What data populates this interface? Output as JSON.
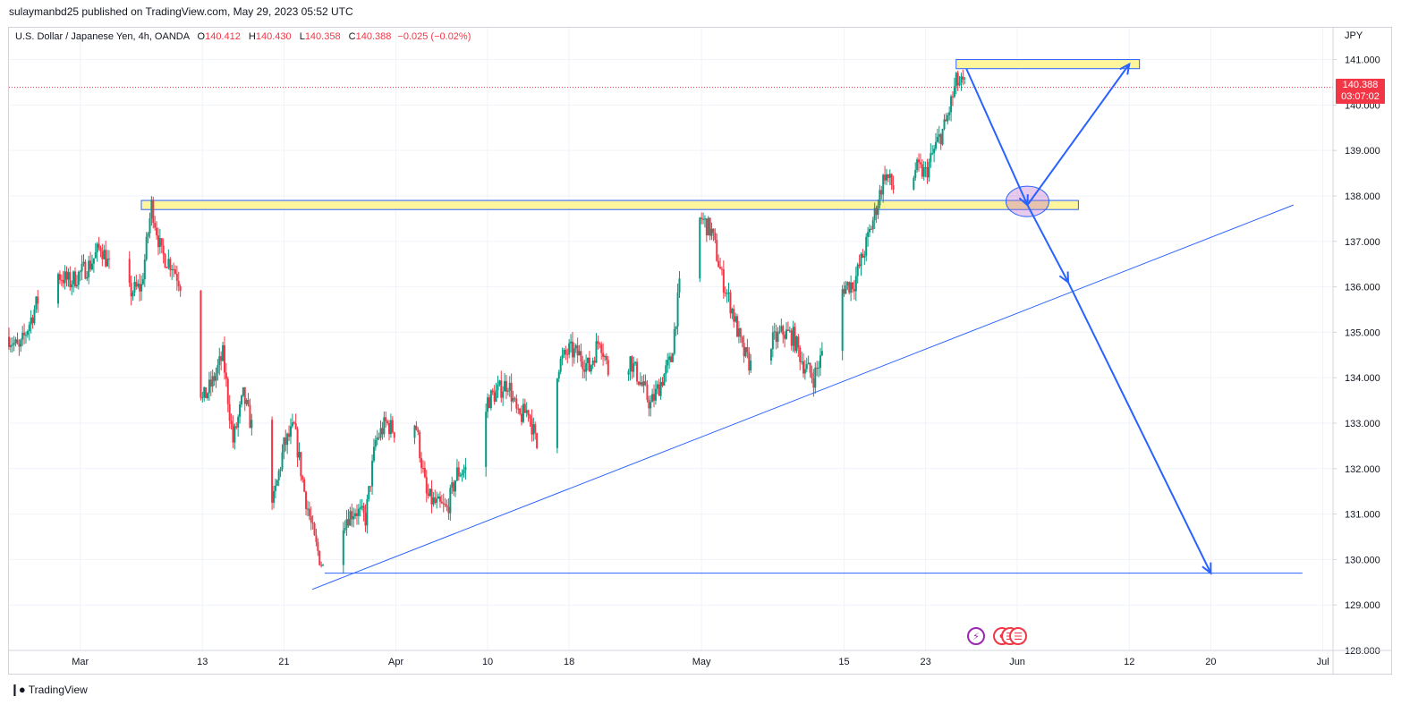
{
  "header": {
    "published_line": "sulaymanbd25 published on TradingView.com, May 29, 2023 05:52 UTC"
  },
  "legend": {
    "symbol": "U.S. Dollar / Japanese Yen, 4h, OANDA",
    "o_label": "O",
    "o_value": "140.412",
    "h_label": "H",
    "h_value": "140.430",
    "l_label": "L",
    "l_value": "140.358",
    "c_label": "C",
    "c_value": "140.388",
    "change": "−0.025 (−0.02%)"
  },
  "currency": "JPY",
  "price_label": {
    "price": "140.388",
    "countdown": "03:07:02"
  },
  "brand": {
    "name": "TradingView"
  },
  "colors": {
    "up": "#089981",
    "down": "#f23645",
    "drawing": "#2962ff",
    "zone_fill": "#fff59d",
    "zone_border": "#2962ff"
  },
  "chart_data": {
    "type": "candlestick",
    "title": "U.S. Dollar / Japanese Yen, 4h, OANDA",
    "ylim": [
      128.0,
      141.7
    ],
    "y_ticks": [
      "141.000",
      "140.000",
      "139.000",
      "138.000",
      "137.000",
      "136.000",
      "135.000",
      "134.000",
      "133.000",
      "132.000",
      "131.000",
      "130.000",
      "129.000",
      "128.000"
    ],
    "x_ticks": [
      "Mar",
      "13",
      "21",
      "Apr",
      "10",
      "18",
      "May",
      "15",
      "23",
      "Jun",
      "12",
      "20",
      "Jul"
    ],
    "x_tick_dates": [
      "2023-03-01",
      "2023-03-13",
      "2023-03-21",
      "2023-04-01",
      "2023-04-10",
      "2023-04-18",
      "2023-05-01",
      "2023-05-15",
      "2023-05-23",
      "2023-06-01",
      "2023-06-12",
      "2023-06-20",
      "2023-07-01"
    ],
    "x_range": [
      "2023-02-22",
      "2023-07-02"
    ],
    "grid": true,
    "price_path": [
      [
        "2023-02-22",
        134.9
      ],
      [
        "2023-02-23",
        134.6
      ],
      [
        "2023-02-24",
        135.2
      ],
      [
        "2023-02-26",
        136.4
      ],
      [
        "2023-02-28",
        136.1
      ],
      [
        "2023-03-02",
        136.5
      ],
      [
        "2023-03-03",
        136.9
      ],
      [
        "2023-03-05",
        135.8
      ],
      [
        "2023-03-07",
        136.0
      ],
      [
        "2023-03-08",
        137.8
      ],
      [
        "2023-03-09",
        136.7
      ],
      [
        "2023-03-10",
        136.5
      ],
      [
        "2023-03-11",
        136.0
      ],
      [
        "2023-03-13",
        133.5
      ],
      [
        "2023-03-14",
        133.9
      ],
      [
        "2023-03-15",
        134.5
      ],
      [
        "2023-03-16",
        132.6
      ],
      [
        "2023-03-17",
        133.6
      ],
      [
        "2023-03-19",
        132.0
      ],
      [
        "2023-03-20",
        131.3
      ],
      [
        "2023-03-21",
        132.5
      ],
      [
        "2023-03-22",
        132.9
      ],
      [
        "2023-03-23",
        131.5
      ],
      [
        "2023-03-24",
        130.4
      ],
      [
        "2023-03-25",
        129.7
      ],
      [
        "2023-03-26",
        130.7
      ],
      [
        "2023-03-28",
        131.1
      ],
      [
        "2023-03-29",
        130.9
      ],
      [
        "2023-03-30",
        132.6
      ],
      [
        "2023-03-31",
        133.0
      ],
      [
        "2023-04-01",
        132.8
      ],
      [
        "2023-04-02",
        133.5
      ],
      [
        "2023-04-03",
        132.9
      ],
      [
        "2023-04-04",
        131.4
      ],
      [
        "2023-04-05",
        131.2
      ],
      [
        "2023-04-06",
        131.1
      ],
      [
        "2023-04-07",
        131.9
      ],
      [
        "2023-04-09",
        132.1
      ],
      [
        "2023-04-10",
        133.5
      ],
      [
        "2023-04-11",
        133.7
      ],
      [
        "2023-04-12",
        133.9
      ],
      [
        "2023-04-13",
        133.1
      ],
      [
        "2023-04-14",
        133.3
      ],
      [
        "2023-04-15",
        132.3
      ],
      [
        "2023-04-16",
        133.5
      ],
      [
        "2023-04-17",
        134.3
      ],
      [
        "2023-04-18",
        134.6
      ],
      [
        "2023-04-19",
        134.5
      ],
      [
        "2023-04-20",
        134.2
      ],
      [
        "2023-04-21",
        134.9
      ],
      [
        "2023-04-22",
        134.0
      ],
      [
        "2023-04-23",
        134.2
      ],
      [
        "2023-04-24",
        134.4
      ],
      [
        "2023-04-25",
        133.9
      ],
      [
        "2023-04-26",
        133.4
      ],
      [
        "2023-04-27",
        133.9
      ],
      [
        "2023-04-28",
        134.4
      ],
      [
        "2023-04-29",
        136.3
      ],
      [
        "2023-04-30",
        137.3
      ],
      [
        "2023-05-01",
        137.5
      ],
      [
        "2023-05-02",
        137.2
      ],
      [
        "2023-05-03",
        136.2
      ],
      [
        "2023-05-04",
        135.5
      ],
      [
        "2023-05-05",
        134.6
      ],
      [
        "2023-05-06",
        134.2
      ],
      [
        "2023-05-07",
        134.9
      ],
      [
        "2023-05-08",
        134.8
      ],
      [
        "2023-05-09",
        135.0
      ],
      [
        "2023-05-10",
        134.9
      ],
      [
        "2023-05-11",
        134.3
      ],
      [
        "2023-05-12",
        134.0
      ],
      [
        "2023-05-13",
        134.6
      ],
      [
        "2023-05-14",
        135.6
      ],
      [
        "2023-05-15",
        136.0
      ],
      [
        "2023-05-16",
        136.1
      ],
      [
        "2023-05-17",
        136.8
      ],
      [
        "2023-05-18",
        137.6
      ],
      [
        "2023-05-19",
        138.5
      ],
      [
        "2023-05-20",
        138.1
      ],
      [
        "2023-05-21",
        137.7
      ],
      [
        "2023-05-22",
        138.6
      ],
      [
        "2023-05-23",
        138.5
      ],
      [
        "2023-05-24",
        139.1
      ],
      [
        "2023-05-25",
        139.6
      ],
      [
        "2023-05-26",
        140.5
      ],
      [
        "2023-05-27",
        140.4
      ]
    ],
    "drawings": {
      "resistance_zones": [
        {
          "from": "2023-03-07",
          "to": "2023-06-07",
          "low": 137.7,
          "high": 137.9
        },
        {
          "from": "2023-05-26",
          "to": "2023-06-13",
          "low": 140.8,
          "high": 141.0
        }
      ],
      "trendline": {
        "from": [
          "2023-03-25",
          129.5
        ],
        "to": [
          "2023-06-29",
          137.8
        ]
      },
      "support_line": {
        "from": [
          "2023-03-25",
          129.7
        ],
        "to": [
          "2023-06-29",
          129.7
        ]
      },
      "projection_path": [
        [
          "2023-05-27",
          140.8
        ],
        [
          "2023-06-02",
          137.8
        ],
        [
          "2023-06-12",
          140.9
        ],
        [
          "2023-06-02",
          137.8
        ],
        [
          "2023-06-06",
          136.1
        ],
        [
          "2023-06-20",
          129.7
        ]
      ],
      "highlight_circle": {
        "date": "2023-06-02",
        "price": 137.8
      },
      "last_price": 140.388
    }
  }
}
